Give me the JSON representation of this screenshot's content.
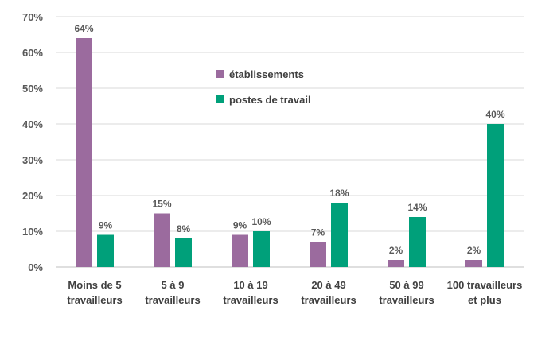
{
  "chart_data": {
    "type": "bar",
    "categories": [
      [
        "Moins de 5",
        "travailleurs"
      ],
      [
        "5 à 9",
        "travailleurs"
      ],
      [
        "10 à 19",
        "travailleurs"
      ],
      [
        "20 à 49",
        "travailleurs"
      ],
      [
        "50 à 99",
        "travailleurs"
      ],
      [
        "100 travailleurs",
        "et plus"
      ]
    ],
    "series": [
      {
        "name": "établissements",
        "color": "#9b6b9e",
        "values": [
          64,
          15,
          9,
          7,
          2,
          2
        ],
        "labels": [
          "64%",
          "15%",
          "9%",
          "7%",
          "2%",
          "2%"
        ]
      },
      {
        "name": "postes de travail",
        "color": "#00a07a",
        "values": [
          9,
          8,
          10,
          18,
          14,
          40
        ],
        "labels": [
          "9%",
          "8%",
          "10%",
          "18%",
          "14%",
          "40%"
        ]
      }
    ],
    "ylim": [
      0,
      70
    ],
    "yticks": [
      0,
      10,
      20,
      30,
      40,
      50,
      60,
      70
    ],
    "ytick_labels": [
      "0%",
      "10%",
      "20%",
      "30%",
      "40%",
      "50%",
      "60%",
      "70%"
    ],
    "grid": true,
    "legend_position": "top-center"
  }
}
